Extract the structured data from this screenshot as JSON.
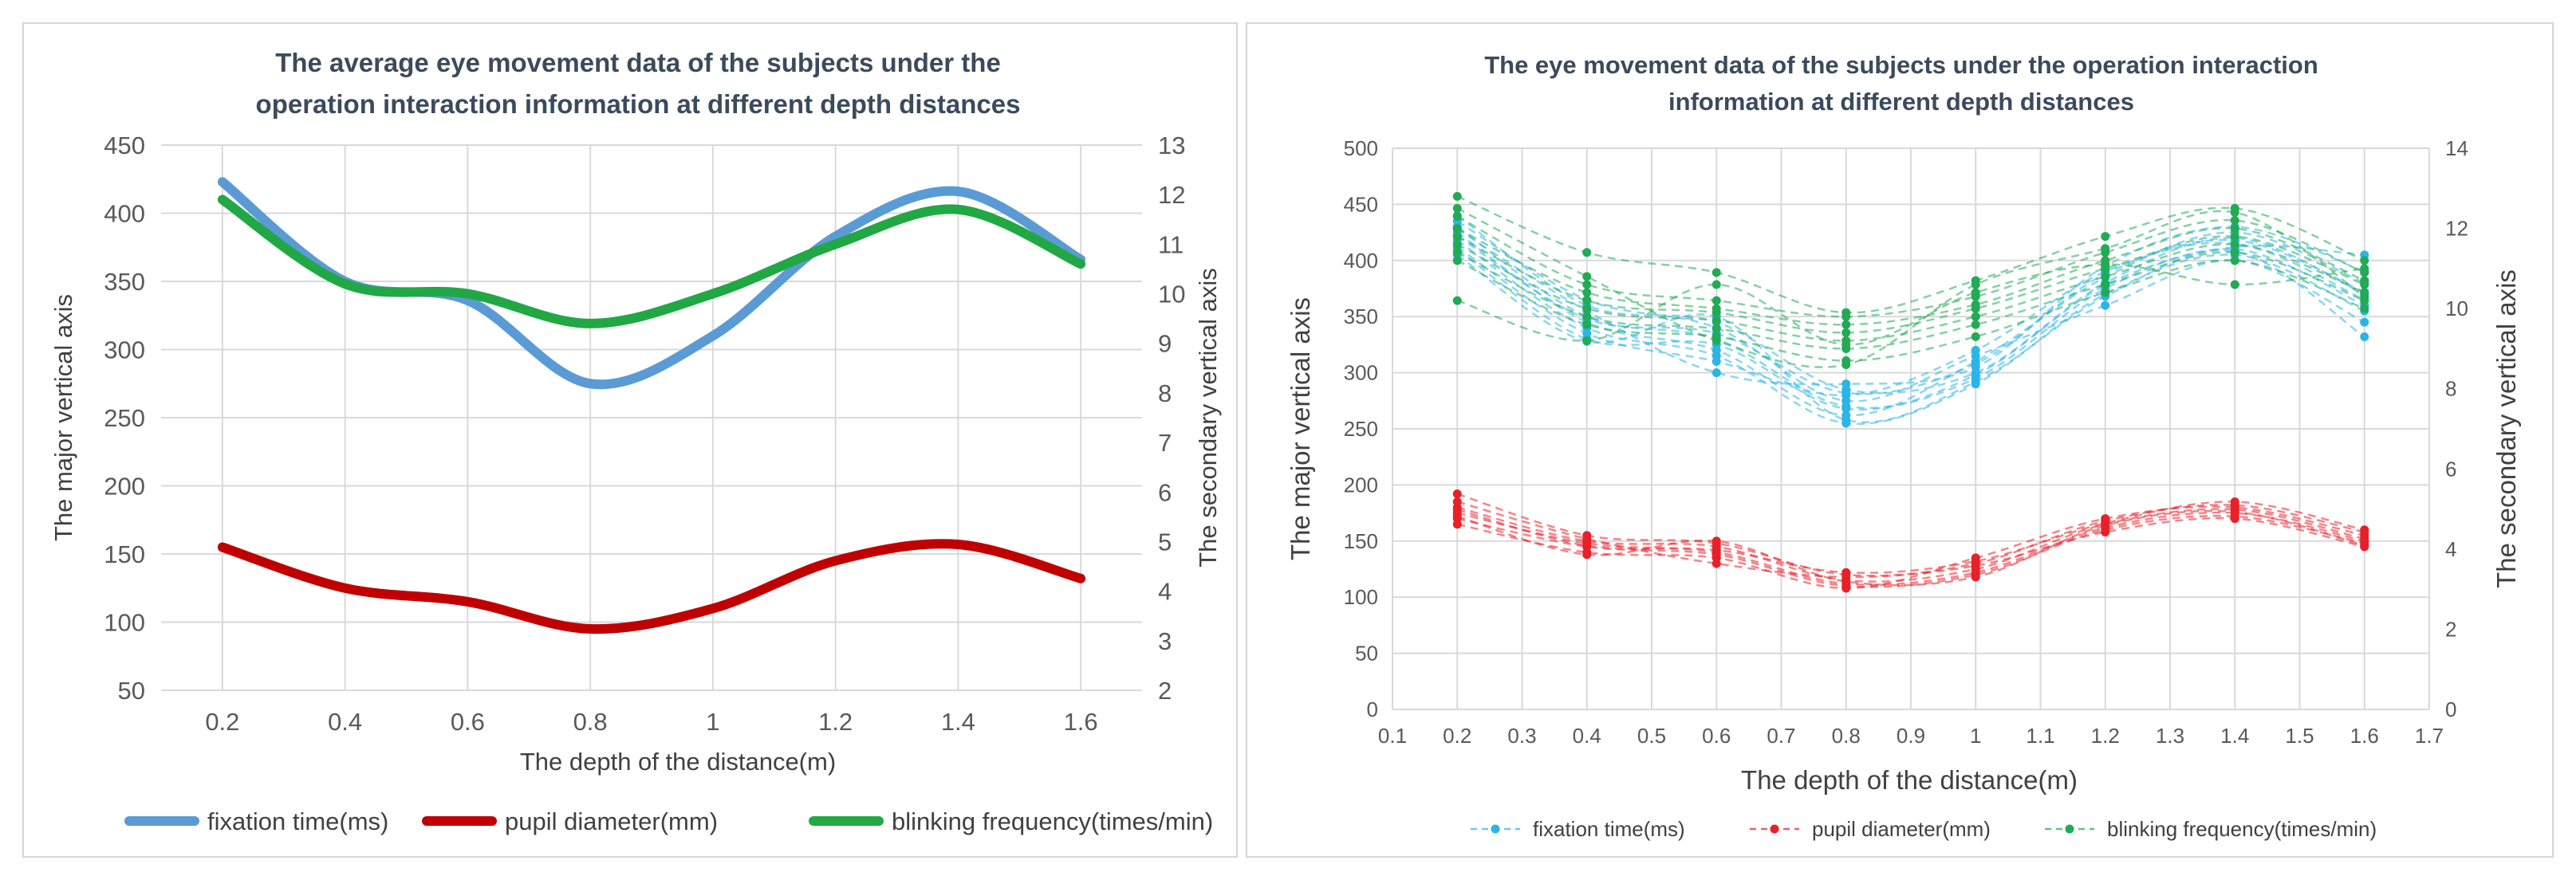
{
  "chart_data": [
    {
      "type": "line",
      "title_lines": [
        "The average eye movement data of the subjects under the",
        "operation interaction information at different depth distances"
      ],
      "xlabel": "The depth of the distance(m)",
      "ylabel": "The major vertical axis",
      "y2label": "The secondary vertical axis",
      "x": [
        0.2,
        0.4,
        0.6,
        0.8,
        1,
        1.2,
        1.4,
        1.6
      ],
      "x_ticks": [
        "0.2",
        "0.4",
        "0.6",
        "0.8",
        "1",
        "1.2",
        "1.4",
        "1.6"
      ],
      "xlim": [
        0.1,
        1.7
      ],
      "ylim": [
        50,
        450
      ],
      "y_ticks": [
        50,
        100,
        150,
        200,
        250,
        300,
        350,
        400,
        450
      ],
      "y2lim": [
        2,
        13
      ],
      "y2_ticks": [
        2,
        3,
        4,
        5,
        6,
        7,
        8,
        9,
        10,
        11,
        12,
        13
      ],
      "grid": true,
      "smooth": true,
      "legend_position": "bottom",
      "series": [
        {
          "name": "fixation time(ms)",
          "axis": "primary",
          "color": "#5b9bd5",
          "values": [
            423,
            350,
            336,
            275,
            310,
            383,
            416,
            366
          ]
        },
        {
          "name": "pupil diameter(mm)",
          "axis": "primary",
          "color": "#c00000",
          "values": [
            155,
            125,
            115,
            95,
            110,
            145,
            157,
            132
          ]
        },
        {
          "name": "blinking frequency(times/min)",
          "axis": "secondary",
          "color": "#21a845",
          "values": [
            11.9,
            10.2,
            10.0,
            9.4,
            10.0,
            11.0,
            11.7,
            10.6
          ]
        }
      ]
    },
    {
      "type": "scatter",
      "title_lines": [
        "The eye movement data of the subjects under the operation interaction",
        "information at different depth distances"
      ],
      "xlabel": "The depth of the distance(m)",
      "ylabel": "The major vertical axis",
      "y2label": "The secondary vertical axis",
      "x": [
        0.2,
        0.4,
        0.6,
        0.8,
        1,
        1.2,
        1.4,
        1.6
      ],
      "x_ticks": [
        "0.1",
        "0.2",
        "0.3",
        "0.4",
        "0.5",
        "0.6",
        "0.7",
        "0.8",
        "0.9",
        "1",
        "1.1",
        "1.2",
        "1.3",
        "1.4",
        "1.5",
        "1.6",
        "1.7"
      ],
      "xlim": [
        0.1,
        1.7
      ],
      "ylim": [
        0,
        500
      ],
      "y_ticks": [
        0,
        50,
        100,
        150,
        200,
        250,
        300,
        350,
        400,
        450,
        500
      ],
      "y2lim": [
        0,
        14
      ],
      "y2_ticks": [
        0,
        2,
        4,
        6,
        8,
        10,
        12,
        14
      ],
      "grid": true,
      "line_style": "dashed with markers",
      "legend_position": "bottom",
      "series_groups": [
        {
          "name": "fixation time(ms)",
          "axis": "primary",
          "color": "#2bb5e6",
          "subjects": [
            [
              440,
              360,
              345,
              285,
              300,
              380,
              420,
              370
            ],
            [
              430,
              350,
              330,
              270,
              295,
              375,
              410,
              360
            ],
            [
              425,
              345,
              320,
              262,
              310,
              385,
              425,
              380
            ],
            [
              418,
              340,
              315,
              255,
              290,
              370,
              405,
              355
            ],
            [
              412,
              335,
              310,
              280,
              320,
              390,
              415,
              365
            ],
            [
              428,
              355,
              300,
              290,
              305,
              395,
              430,
              390
            ],
            [
              435,
              365,
              340,
              275,
              315,
              360,
              400,
              345
            ],
            [
              410,
              330,
              325,
              268,
              298,
              378,
              412,
              405
            ],
            [
              422,
              348,
              335,
              282,
              308,
              388,
              418,
              372
            ],
            [
              405,
              328,
              350,
              258,
              292,
              368,
              408,
              332
            ]
          ]
        },
        {
          "name": "pupil diameter(mm)",
          "axis": "primary",
          "color": "#e8202a",
          "subjects": [
            [
              192,
              155,
              148,
              120,
              130,
              168,
              182,
              158
            ],
            [
              180,
              150,
              145,
              115,
              125,
              165,
              178,
              152
            ],
            [
              175,
              148,
              140,
              112,
              122,
              162,
              175,
              150
            ],
            [
              170,
              145,
              138,
              110,
              120,
              160,
              172,
              148
            ],
            [
              165,
              140,
              135,
              108,
              135,
              170,
              180,
              155
            ],
            [
              185,
              152,
              130,
              118,
              128,
              158,
              170,
              145
            ],
            [
              178,
              146,
              142,
              122,
              132,
              166,
              185,
              160
            ],
            [
              172,
              138,
              150,
              114,
              118,
              164,
              176,
              146
            ]
          ]
        },
        {
          "name": "blinking frequency(times/min)",
          "axis": "secondary",
          "color": "#22aa55",
          "subjects": [
            [
              12.8,
              11.4,
              10.9,
              9.9,
              10.7,
              11.8,
              12.5,
              11.2
            ],
            [
              12.3,
              10.6,
              10.2,
              9.8,
              10.3,
              11.4,
              12.2,
              10.9
            ],
            [
              12.0,
              10.4,
              10.0,
              9.6,
              10.1,
              11.2,
              12.0,
              10.7
            ],
            [
              11.8,
              10.2,
              9.9,
              9.4,
              10.0,
              11.0,
              11.8,
              10.6
            ],
            [
              11.6,
              10.0,
              9.7,
              9.2,
              9.8,
              10.8,
              11.6,
              10.4
            ],
            [
              11.4,
              9.8,
              9.5,
              9.0,
              9.6,
              10.6,
              11.4,
              10.2
            ],
            [
              11.2,
              9.6,
              9.3,
              8.7,
              9.3,
              10.4,
              11.2,
              10.0
            ],
            [
              10.2,
              9.2,
              10.6,
              9.1,
              10.4,
              11.1,
              10.6,
              11.0
            ],
            [
              12.5,
              10.8,
              9.2,
              8.6,
              10.6,
              11.5,
              12.4,
              10.3
            ]
          ]
        }
      ]
    }
  ]
}
